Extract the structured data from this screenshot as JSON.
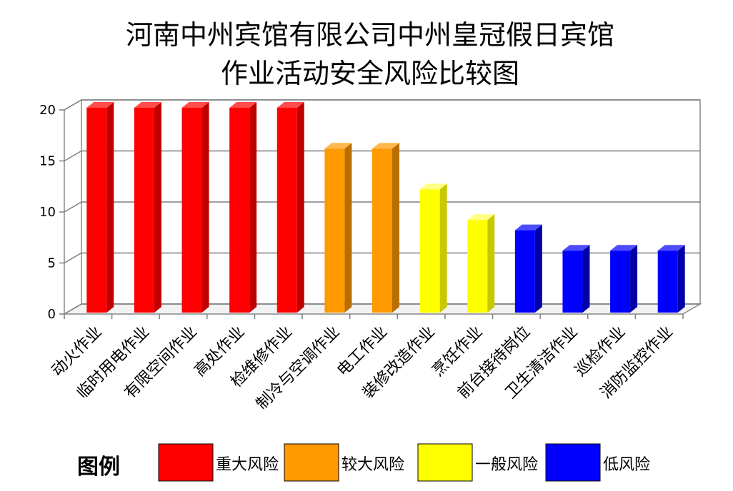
{
  "chart_data": {
    "type": "bar",
    "title_lines": [
      "河南中州宾馆有限公司中州皇冠假日宾馆",
      "作业活动安全风险比较图"
    ],
    "xlabel": "",
    "ylabel": "",
    "ylim": [
      0,
      20
    ],
    "yticks": [
      "0",
      "5",
      "10",
      "15",
      "20"
    ],
    "grid": true,
    "categories": [
      "动火作业",
      "临时用电作业",
      "有限空间作业",
      "高处作业",
      "检维修作业",
      "制冷与空调作业",
      "电工作业",
      "装修改造作业",
      "烹饪作业",
      "前台接待岗位",
      "卫生清洁作业",
      "巡检作业",
      "消防监控作业"
    ],
    "values": [
      20,
      20,
      20,
      20,
      20,
      16,
      16,
      12,
      9,
      8,
      6,
      6,
      6
    ],
    "risk_levels": [
      "major",
      "major",
      "major",
      "major",
      "major",
      "large",
      "large",
      "general",
      "general",
      "low",
      "low",
      "low",
      "low"
    ]
  },
  "legend": {
    "title": "图例",
    "items": [
      {
        "key": "major",
        "label": "重大风险",
        "color": "#ff0000"
      },
      {
        "key": "large",
        "label": "较大风险",
        "color": "#ff9900"
      },
      {
        "key": "general",
        "label": "一般风险",
        "color": "#ffff00"
      },
      {
        "key": "low",
        "label": "低风险",
        "color": "#0000ff"
      }
    ]
  },
  "colors": {
    "major": {
      "front": "#ff0000",
      "side": "#c00000",
      "top": "#ff4d4d"
    },
    "large": {
      "front": "#ff9900",
      "side": "#b86e00",
      "top": "#ffb84d"
    },
    "general": {
      "front": "#ffff00",
      "side": "#c8c800",
      "top": "#ffff80"
    },
    "low": {
      "front": "#0000ff",
      "side": "#0000a8",
      "top": "#4d4dff"
    }
  }
}
